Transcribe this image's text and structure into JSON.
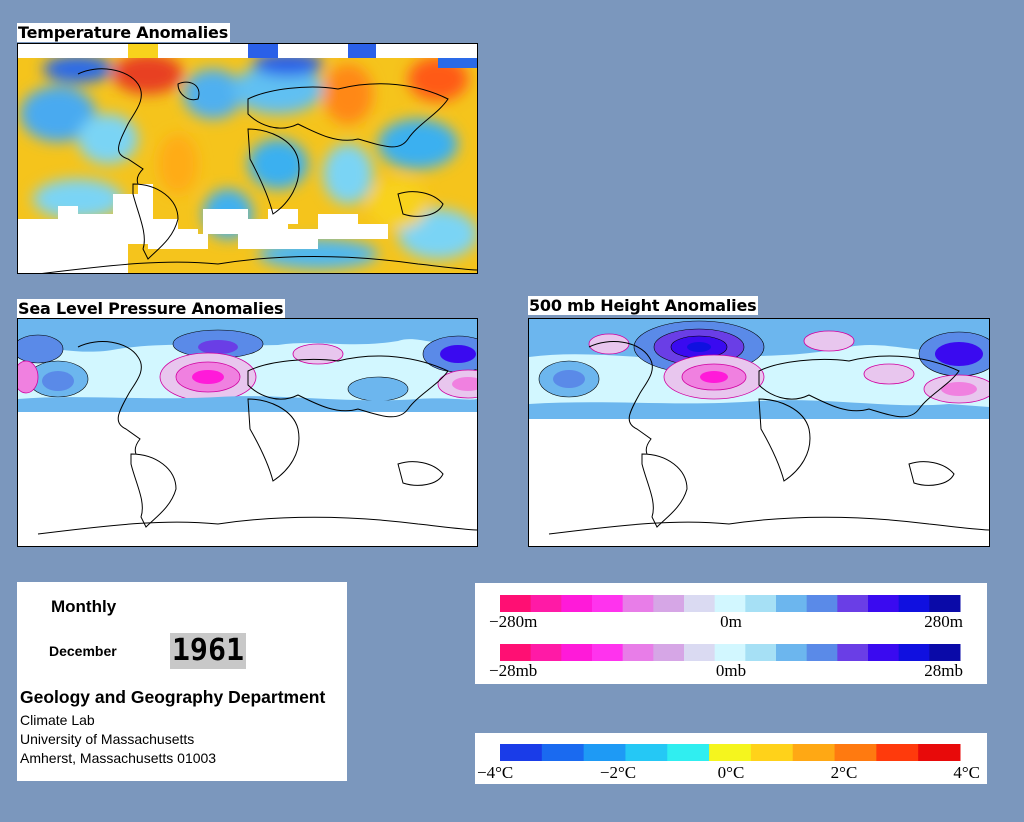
{
  "panels": {
    "temperature": {
      "title": "Temperature Anomalies"
    },
    "pressure": {
      "title": "Sea Level Pressure Anomalies"
    },
    "height": {
      "title": "500 mb Height Anomalies"
    }
  },
  "info": {
    "period": "Monthly",
    "month": "December",
    "year": "1961",
    "department": "Geology and Geography Department",
    "lab": "Climate Lab",
    "university": "University of Massachusetts",
    "address": "Amherst, Massachusetts 01003"
  },
  "legends": {
    "height": {
      "labels": [
        "−280m",
        "0m",
        "280m"
      ],
      "colors": [
        "#ff0f73",
        "#ff1aa6",
        "#ff1ad9",
        "#ff33ee",
        "#e87de8",
        "#d6a6e6",
        "#dadaf2",
        "#d2f7ff",
        "#a6e0f5",
        "#6cb6ee",
        "#5a8ae8",
        "#6a3ee6",
        "#3a0af0",
        "#1010e0",
        "#0a0aa8"
      ]
    },
    "pressure": {
      "labels": [
        "−28mb",
        "0mb",
        "28mb"
      ],
      "colors": [
        "#ff0f73",
        "#ff1aa6",
        "#ff1ad9",
        "#ff33ee",
        "#e87de8",
        "#d6a6e6",
        "#dadaf2",
        "#d2f7ff",
        "#a6e0f5",
        "#6cb6ee",
        "#5a8ae8",
        "#6a3ee6",
        "#3a0af0",
        "#1010e0",
        "#0a0aa8"
      ]
    },
    "temperature": {
      "labels": [
        "−4°C",
        "−2°C",
        "0°C",
        "2°C",
        "4°C"
      ],
      "colors": [
        "#1a3ce8",
        "#1a6af0",
        "#1e9af5",
        "#25c8f5",
        "#30eef0",
        "#f5f51e",
        "#ffd21a",
        "#ffa814",
        "#ff7a10",
        "#ff3a0c",
        "#e80a0a"
      ]
    }
  }
}
